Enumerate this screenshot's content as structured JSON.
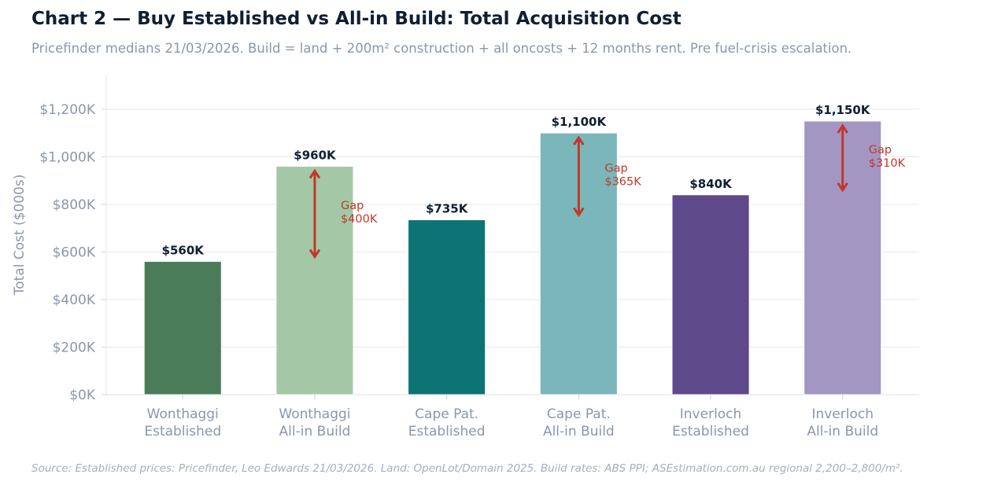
{
  "chart_data": {
    "type": "bar",
    "title": "Chart 2 — Buy Established vs All-in Build: Total Acquisition Cost",
    "subtitle": "Pricefinder medians 21/03/2026. Build = land + 200m² construction + all oncosts + 12 months rent. Pre fuel-crisis escalation.",
    "source": "Source: Established prices: Pricefinder, Leo Edwards 21/03/2026. Land: OpenLot/Domain 2025. Build rates: ABS PPI; ASEstimation.com.au regional 2,200–2,800/m².",
    "ylabel": "Total Cost ($000s)",
    "xlabel": "",
    "ylim": [
      0,
      1345
    ],
    "yticks": [
      0,
      200,
      400,
      600,
      800,
      1000,
      1200
    ],
    "ytick_labels": [
      "$0K",
      "$200K",
      "$400K",
      "$600K",
      "$800K",
      "$1,000K",
      "$1,200K"
    ],
    "grid": "horizontal",
    "categories": [
      [
        "Wonthaggi",
        "Established"
      ],
      [
        "Wonthaggi",
        "All-in Build"
      ],
      [
        "Cape Pat.",
        "Established"
      ],
      [
        "Cape Pat.",
        "All-in Build"
      ],
      [
        "Inverloch",
        "Established"
      ],
      [
        "Inverloch",
        "All-in Build"
      ]
    ],
    "values": [
      560,
      960,
      735,
      1100,
      840,
      1150
    ],
    "value_labels": [
      "$560K",
      "$960K",
      "$735K",
      "$1,100K",
      "$840K",
      "$1,150K"
    ],
    "colors": [
      "#4a7c59",
      "#a4c8a6",
      "#0e7374",
      "#7bb7ba",
      "#5e4a8a",
      "#a396c2"
    ],
    "annotations": [
      {
        "bar": 1,
        "from": 560,
        "to": 960,
        "label": [
          "Gap",
          "$400K"
        ]
      },
      {
        "bar": 3,
        "from": 735,
        "to": 1100,
        "label": [
          "Gap",
          "$365K"
        ]
      },
      {
        "bar": 5,
        "from": 840,
        "to": 1150,
        "label": [
          "Gap",
          "$310K"
        ]
      }
    ],
    "annotation_color": "#c0392b"
  }
}
